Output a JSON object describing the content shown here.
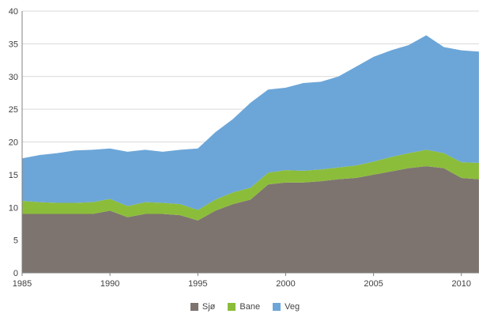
{
  "chart_data": {
    "type": "area",
    "stacked": true,
    "title": "",
    "xlabel": "",
    "ylabel": "",
    "ylim": [
      0,
      40
    ],
    "y_ticks": [
      0,
      5,
      10,
      15,
      20,
      25,
      30,
      35,
      40
    ],
    "x_ticks": [
      1985,
      1990,
      1995,
      2000,
      2005,
      2010
    ],
    "grid": "horizontal",
    "legend_position": "bottom",
    "x": [
      1985,
      1986,
      1987,
      1988,
      1989,
      1990,
      1991,
      1992,
      1993,
      1994,
      1995,
      1996,
      1997,
      1998,
      1999,
      2000,
      2001,
      2002,
      2003,
      2004,
      2005,
      2006,
      2007,
      2008,
      2009,
      2010,
      2011
    ],
    "series": [
      {
        "name": "Sjø",
        "color": "#7d746f",
        "values": [
          9.0,
          9.0,
          9.0,
          9.0,
          9.0,
          9.5,
          8.5,
          9.0,
          9.0,
          8.8,
          8.0,
          9.5,
          10.5,
          11.2,
          13.5,
          13.8,
          13.8,
          14.0,
          14.3,
          14.5,
          15.0,
          15.5,
          16.0,
          16.3,
          16.0,
          14.5,
          14.3
        ]
      },
      {
        "name": "Bane",
        "color": "#8cbd3a",
        "values": [
          2.0,
          1.8,
          1.7,
          1.7,
          1.8,
          1.8,
          1.7,
          1.8,
          1.7,
          1.7,
          1.6,
          1.7,
          1.8,
          1.8,
          1.8,
          1.9,
          1.8,
          1.8,
          1.8,
          1.9,
          2.0,
          2.2,
          2.3,
          2.5,
          2.3,
          2.4,
          2.5
        ]
      },
      {
        "name": "Veg",
        "color": "#6ca6d8",
        "values": [
          6.5,
          7.2,
          7.6,
          8.0,
          8.0,
          7.7,
          8.3,
          8.0,
          7.8,
          8.3,
          9.4,
          10.3,
          11.2,
          13.0,
          12.7,
          12.6,
          13.4,
          13.4,
          13.9,
          15.1,
          16.0,
          16.3,
          16.5,
          17.5,
          16.2,
          17.1,
          17.0
        ]
      }
    ],
    "axis_color": "#808080",
    "grid_color": "#d9d9d9",
    "tick_label_color": "#404040"
  }
}
